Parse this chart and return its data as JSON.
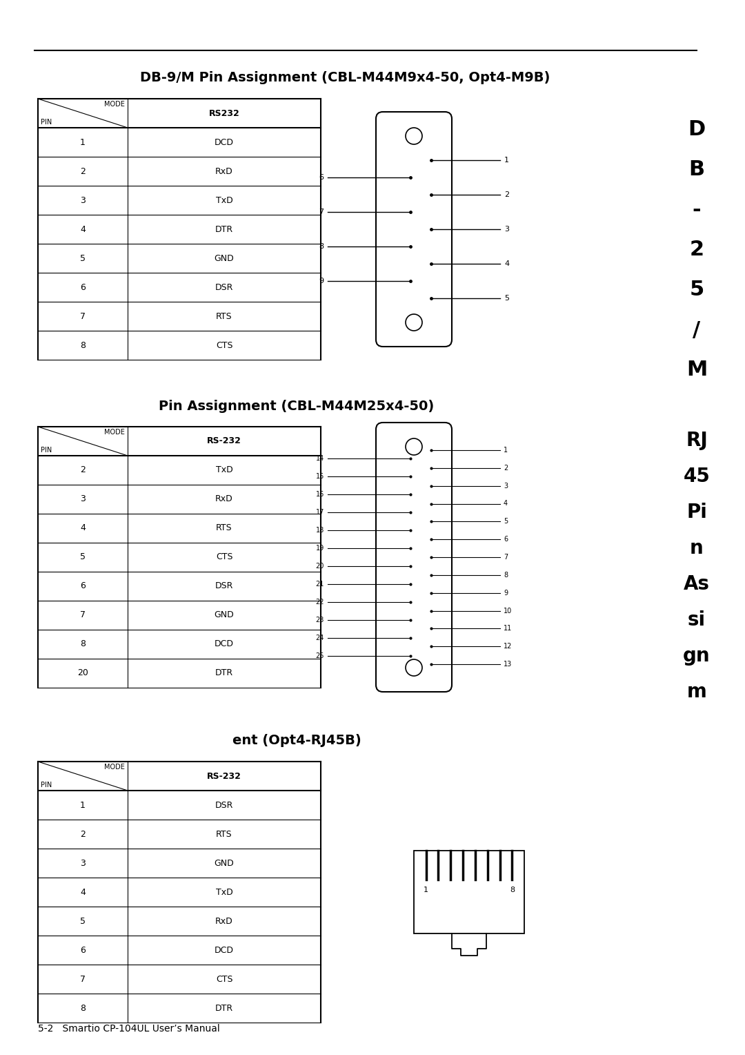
{
  "title1": "DB-9/M Pin Assignment (CBL-M44M9x4-50, Opt4-M9B)",
  "title2": "Pin Assignment (CBL-M44M25x4-50)",
  "title3": "ent (Opt4-RJ45B)",
  "footer": "5-2   Smartio CP-104UL User’s Manual",
  "table1_header": [
    "PIN",
    "RS232"
  ],
  "table1_rows": [
    [
      "1",
      "DCD"
    ],
    [
      "2",
      "RxD"
    ],
    [
      "3",
      "TxD"
    ],
    [
      "4",
      "DTR"
    ],
    [
      "5",
      "GND"
    ],
    [
      "6",
      "DSR"
    ],
    [
      "7",
      "RTS"
    ],
    [
      "8",
      "CTS"
    ]
  ],
  "table2_header": [
    "PIN",
    "RS-232"
  ],
  "table2_rows": [
    [
      "2",
      "TxD"
    ],
    [
      "3",
      "RxD"
    ],
    [
      "4",
      "RTS"
    ],
    [
      "5",
      "CTS"
    ],
    [
      "6",
      "DSR"
    ],
    [
      "7",
      "GND"
    ],
    [
      "8",
      "DCD"
    ],
    [
      "20",
      "DTR"
    ]
  ],
  "table3_header": [
    "PIN",
    "RS-232"
  ],
  "table3_rows": [
    [
      "1",
      "DSR"
    ],
    [
      "2",
      "RTS"
    ],
    [
      "3",
      "GND"
    ],
    [
      "4",
      "TxD"
    ],
    [
      "5",
      "RxD"
    ],
    [
      "6",
      "DCD"
    ],
    [
      "7",
      "CTS"
    ],
    [
      "8",
      "DTR"
    ]
  ],
  "sidebar1_chars": [
    "D",
    "B",
    "-",
    "2",
    "5",
    "/",
    "M"
  ],
  "sidebar2_chars": [
    "RJ",
    "45",
    "Pi",
    "n",
    "As",
    "si",
    "gn",
    "m"
  ],
  "bg_color": "#ffffff",
  "text_color": "#000000"
}
